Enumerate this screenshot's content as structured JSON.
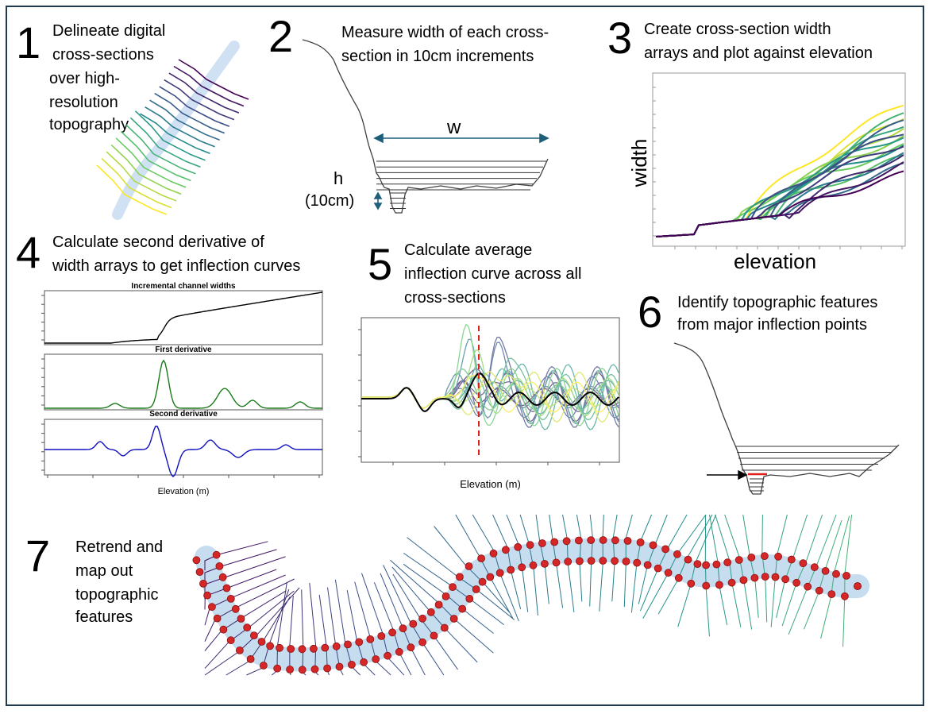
{
  "steps": [
    {
      "number": "1",
      "lines": [
        "Delineate digital",
        "cross-sections",
        "over high-",
        "resolution",
        "topography"
      ]
    },
    {
      "number": "2",
      "lines": [
        "Measure width of each cross-",
        "section in 10cm increments"
      ]
    },
    {
      "number": "3",
      "lines": [
        "Create cross-section width",
        "arrays and plot against elevation"
      ]
    },
    {
      "number": "4",
      "lines": [
        "Calculate second derivative of",
        "width arrays to get inflection curves"
      ]
    },
    {
      "number": "5",
      "lines": [
        "Calculate average",
        "inflection curve across all",
        "cross-sections"
      ]
    },
    {
      "number": "6",
      "lines": [
        "Identify topographic features",
        "from major inflection points"
      ]
    },
    {
      "number": "7",
      "lines": [
        "Retrend and",
        "map out",
        "topographic",
        "features"
      ]
    }
  ],
  "panel2": {
    "width_label": "w",
    "height_label": "h",
    "height_unit": "(10cm)"
  },
  "panel3": {
    "xlabel": "elevation",
    "ylabel": "width"
  },
  "panel4": {
    "titles": [
      "Incremental channel widths",
      "First derivative",
      "Second derivative"
    ],
    "xlabel": "Elevation (m)"
  },
  "panel5": {
    "xlabel": "Elevation (m)"
  },
  "colors": {
    "frame": "#1f3b4d",
    "arrow": "#1f5f7a",
    "red_points": "#d62728",
    "channel": "#c6dcef"
  }
}
